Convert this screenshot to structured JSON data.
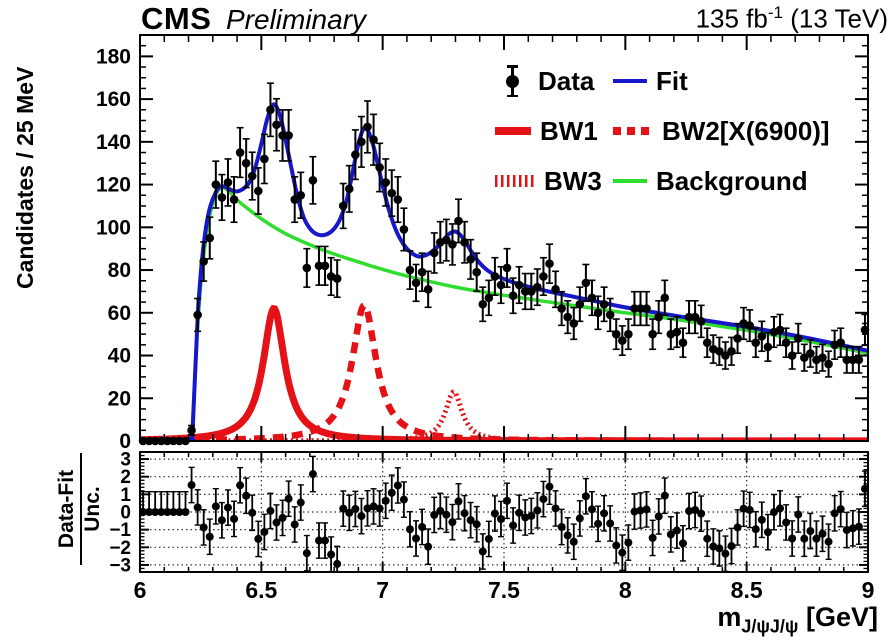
{
  "header": {
    "experiment": "CMS",
    "status": "Preliminary",
    "lumi_prefix": "135 fb",
    "lumi_exponent": "-1",
    "lumi_suffix": " (13 TeV)"
  },
  "axes": {
    "main_y_title": "Candidates / 25 MeV",
    "main_y_tick_values": [
      0,
      20,
      40,
      60,
      80,
      100,
      120,
      140,
      160,
      180
    ],
    "ratio_title_numerator": "Data-Fit",
    "ratio_title_denominator": "Unc.",
    "ratio_y_tick_values": [
      3,
      2,
      1,
      0,
      -1,
      -2,
      -3
    ],
    "x_tick_values": [
      6,
      6.5,
      7,
      7.5,
      8,
      8.5,
      9
    ],
    "x_tick_labels": [
      "6",
      "6.5",
      "7",
      "7.5",
      "8",
      "8.5",
      "9"
    ],
    "x_title_base": "m",
    "x_title_subscript": "J/ψJ/ψ",
    "x_title_unit": " [GeV]"
  },
  "legend": {
    "items": [
      {
        "label": "Data",
        "swatch": "data-marker"
      },
      {
        "label": "Fit",
        "swatch": "blue-line"
      },
      {
        "label": "BW1",
        "swatch": "red-thick-line"
      },
      {
        "label": "BW2[X(6900)]",
        "swatch": "red-dashed-line"
      },
      {
        "label": "BW3",
        "swatch": "red-comb-line"
      },
      {
        "label": "Background",
        "swatch": "green-line"
      }
    ]
  },
  "colors": {
    "data": "#000000",
    "fit": "#1717cb",
    "background": "#2fdd2f",
    "breit_wigner": "#e41216",
    "frame": "#000000",
    "grid_dots": "#333333"
  },
  "chart_data": {
    "type": "histogram_with_fit",
    "title": "CMS Preliminary 135 fb-1 (13 TeV)",
    "x_label": "m_{J/psi J/psi} [GeV]",
    "y_label": "Candidates / 25 MeV",
    "x_range": [
      6.0,
      9.0
    ],
    "y_range": [
      0,
      190
    ],
    "bin_width_gev": 0.025,
    "data_points": {
      "x_start": 6.0125,
      "x_step": 0.025,
      "values": [
        0,
        0,
        0,
        0,
        0,
        0,
        0,
        0,
        5,
        59,
        84,
        95,
        120,
        114,
        121,
        113,
        135,
        130,
        124,
        117,
        132,
        155,
        148,
        143,
        143,
        113,
        115,
        81,
        122,
        82,
        82,
        77,
        76,
        110,
        118,
        134,
        140,
        147,
        141,
        128,
        121,
        116,
        113,
        99,
        80,
        74,
        79,
        71,
        88,
        93,
        94,
        92,
        103,
        93,
        85,
        79,
        64,
        67,
        77,
        73,
        81,
        68,
        73,
        70,
        70,
        72,
        77,
        83,
        71,
        62,
        58,
        55,
        64,
        74,
        67,
        60,
        64,
        59,
        50,
        47,
        50,
        62,
        62,
        62,
        50,
        58,
        67,
        50,
        51,
        46,
        58,
        58,
        56,
        46,
        43,
        42,
        40,
        42,
        48,
        55,
        54,
        46,
        49,
        44,
        51,
        52,
        46,
        40,
        48,
        39,
        41,
        38,
        39,
        36,
        45,
        46,
        38,
        38,
        38,
        52
      ],
      "errors": "poisson sqrt(N)"
    },
    "fit_curve_anchors": [
      [
        6.0,
        0
      ],
      [
        6.205,
        0
      ],
      [
        6.212,
        1
      ],
      [
        6.218,
        8
      ],
      [
        6.2375,
        57
      ],
      [
        6.25,
        78
      ],
      [
        6.2625,
        92
      ],
      [
        6.275,
        102
      ],
      [
        6.29,
        110
      ],
      [
        6.3125,
        116.5
      ],
      [
        6.33,
        119
      ],
      [
        6.35,
        119
      ],
      [
        6.375,
        117.5
      ],
      [
        6.4,
        116.8
      ],
      [
        6.425,
        118
      ],
      [
        6.45,
        121
      ],
      [
        6.475,
        128
      ],
      [
        6.5,
        139
      ],
      [
        6.525,
        151
      ],
      [
        6.55,
        157.5
      ],
      [
        6.575,
        153
      ],
      [
        6.6,
        141
      ],
      [
        6.625,
        127
      ],
      [
        6.65,
        114
      ],
      [
        6.675,
        104.5
      ],
      [
        6.7,
        99.5
      ],
      [
        6.725,
        97
      ],
      [
        6.75,
        96.3
      ],
      [
        6.775,
        97
      ],
      [
        6.8,
        99.3
      ],
      [
        6.825,
        104
      ],
      [
        6.85,
        112
      ],
      [
        6.875,
        125
      ],
      [
        6.9,
        139
      ],
      [
        6.925,
        146.5
      ],
      [
        6.95,
        142.5
      ],
      [
        6.975,
        132
      ],
      [
        7.0,
        119.5
      ],
      [
        7.025,
        108.5
      ],
      [
        7.05,
        100
      ],
      [
        7.075,
        94
      ],
      [
        7.1,
        90
      ],
      [
        7.125,
        87.5
      ],
      [
        7.15,
        86.3
      ],
      [
        7.175,
        86.8
      ],
      [
        7.2,
        88.3
      ],
      [
        7.225,
        90.8
      ],
      [
        7.25,
        94
      ],
      [
        7.275,
        97
      ],
      [
        7.3,
        98
      ],
      [
        7.325,
        95.8
      ],
      [
        7.35,
        91.5
      ],
      [
        7.375,
        87
      ],
      [
        7.4,
        83.3
      ],
      [
        7.425,
        80.5
      ],
      [
        7.45,
        78.5
      ],
      [
        7.475,
        77
      ],
      [
        7.5,
        75.8
      ],
      [
        7.55,
        73.8
      ],
      [
        7.6,
        72.2
      ],
      [
        7.7,
        69.6
      ],
      [
        7.8,
        67.2
      ],
      [
        7.9,
        64.9
      ],
      [
        8.0,
        62.5
      ],
      [
        8.25,
        57.8
      ],
      [
        8.5,
        53.4
      ],
      [
        8.75,
        48.2
      ],
      [
        9.0,
        42.2
      ]
    ],
    "background_curve_anchors": [
      [
        6.0,
        0
      ],
      [
        6.207,
        0
      ],
      [
        6.215,
        5
      ],
      [
        6.2375,
        54
      ],
      [
        6.2625,
        87
      ],
      [
        6.29,
        107
      ],
      [
        6.3125,
        115
      ],
      [
        6.33,
        118.5
      ],
      [
        6.35,
        118.3
      ],
      [
        6.375,
        116
      ],
      [
        6.4,
        112.8
      ],
      [
        6.45,
        108.2
      ],
      [
        6.5,
        104
      ],
      [
        6.55,
        100.3
      ],
      [
        6.6,
        97
      ],
      [
        6.65,
        94.3
      ],
      [
        6.7,
        91.8
      ],
      [
        6.75,
        89.5
      ],
      [
        6.8,
        87.5
      ],
      [
        6.85,
        85.6
      ],
      [
        6.9,
        83.8
      ],
      [
        6.95,
        82
      ],
      [
        7.0,
        80.3
      ],
      [
        7.1,
        77.2
      ],
      [
        7.2,
        74.5
      ],
      [
        7.3,
        72
      ],
      [
        7.4,
        70
      ],
      [
        7.5,
        68.2
      ],
      [
        7.6,
        66.5
      ],
      [
        7.7,
        64.8
      ],
      [
        7.8,
        63.2
      ],
      [
        7.9,
        61.6
      ],
      [
        8.0,
        60
      ],
      [
        8.125,
        58.2
      ],
      [
        8.25,
        56.2
      ],
      [
        8.375,
        54
      ],
      [
        8.5,
        51.8
      ],
      [
        8.625,
        49.3
      ],
      [
        8.75,
        46.7
      ],
      [
        8.875,
        44
      ],
      [
        9.0,
        41
      ]
    ],
    "breit_wigner_components": {
      "bw1": {
        "label": "BW1",
        "peak": 6.552,
        "height": 62,
        "hwhm": 0.054
      },
      "bw2": {
        "label": "BW2[X(6900)]",
        "peak": 6.924,
        "height": 63.5,
        "hwhm": 0.06
      },
      "bw3": {
        "label": "BW3",
        "peak": 7.293,
        "height": 23,
        "hwhm": 0.042
      }
    },
    "ratio_panel": {
      "y_label": "(Data-Fit)/Unc.",
      "y_range": [
        -3.4,
        3.4
      ],
      "definition": "(data - fit) / sqrt(data)",
      "gridlines_y": [
        -3,
        -2,
        -1,
        0,
        1,
        2,
        3
      ],
      "gridlines_x": [
        6.5,
        7,
        7.5,
        8,
        8.5
      ]
    },
    "legend_entries": [
      "Data",
      "Fit",
      "BW1",
      "BW2[X(6900)]",
      "BW3",
      "Background"
    ]
  }
}
